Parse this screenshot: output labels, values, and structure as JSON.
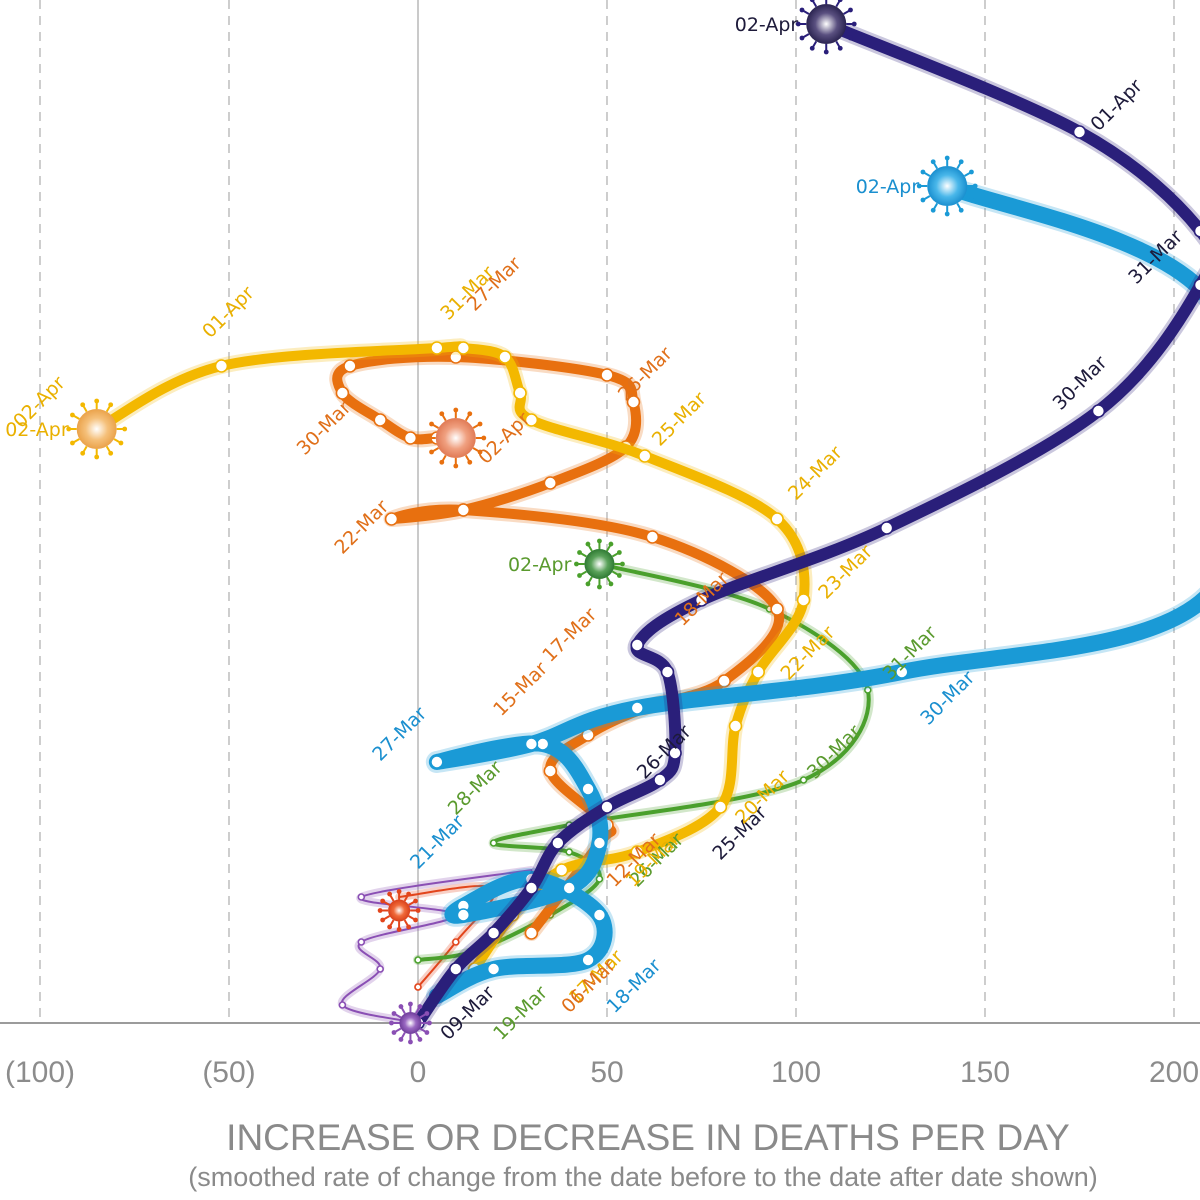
{
  "chart_data": {
    "type": "line",
    "title": "",
    "xlabel": "INCREASE OR DECREASE IN DEATHS PER DAY",
    "xlabel_sub": "(smoothed rate of change from the date before to the date after date shown)",
    "ylabel": "",
    "xlim": [
      -105,
      210
    ],
    "ylim_note": "y-axis unlabeled; y given as fraction of plot height above baseline",
    "x_ticks": [
      {
        "value": -100,
        "label": "(100)"
      },
      {
        "value": -50,
        "label": "(50)"
      },
      {
        "value": 0,
        "label": "0"
      },
      {
        "value": 50,
        "label": "50"
      },
      {
        "value": 100,
        "label": "100"
      },
      {
        "value": 150,
        "label": "150"
      },
      {
        "value": 200,
        "label": "200"
      }
    ],
    "grid": "vertical dashed",
    "series": [
      {
        "name": "dark-navy",
        "color": "#2a1f7a",
        "width": 12,
        "end_label": "02-Apr",
        "points": [
          [
            0,
            0.0
          ],
          [
            10,
            0.06
          ],
          [
            20,
            0.1
          ],
          [
            30,
            0.15
          ],
          [
            37,
            0.2
          ],
          [
            50,
            0.24
          ],
          [
            64,
            0.27
          ],
          [
            68,
            0.3
          ],
          [
            66,
            0.39
          ],
          [
            58,
            0.42
          ],
          [
            75,
            0.47
          ],
          [
            124,
            0.55
          ],
          [
            180,
            0.68
          ],
          [
            207,
            0.82
          ],
          [
            207,
            0.88
          ],
          [
            175,
            0.99
          ],
          [
            108,
            1.11
          ]
        ],
        "labels": [
          {
            "text": "09-Mar",
            "x": 8,
            "y": -0.02
          },
          {
            "text": "25-Mar",
            "x": 80,
            "y": 0.18
          },
          {
            "text": "26-Mar",
            "x": 60,
            "y": 0.27
          },
          {
            "text": "30-Mar",
            "x": 170,
            "y": 0.68
          },
          {
            "text": "31-Mar",
            "x": 190,
            "y": 0.82
          },
          {
            "text": "01-Apr",
            "x": 180,
            "y": 0.99
          }
        ]
      },
      {
        "name": "light-blue",
        "color": "#1a9ad6",
        "width": 16,
        "end_label": "02-Apr",
        "points": [
          [
            5,
            0.03
          ],
          [
            20,
            0.06
          ],
          [
            45,
            0.07
          ],
          [
            48,
            0.12
          ],
          [
            30,
            0.16
          ],
          [
            12,
            0.13
          ],
          [
            12,
            0.12
          ],
          [
            40,
            0.15
          ],
          [
            48,
            0.2
          ],
          [
            45,
            0.26
          ],
          [
            33,
            0.31
          ],
          [
            5,
            0.29
          ],
          [
            30,
            0.31
          ],
          [
            58,
            0.35
          ],
          [
            128,
            0.39
          ],
          [
            210,
            0.48
          ],
          [
            210,
            0.8
          ],
          [
            140,
            0.93
          ]
        ],
        "labels": [
          {
            "text": "18-Mar",
            "x": 52,
            "y": 0.01
          },
          {
            "text": "21-Mar",
            "x": 0,
            "y": 0.17
          },
          {
            "text": "27-Mar",
            "x": -10,
            "y": 0.29
          },
          {
            "text": "30-Mar",
            "x": 135,
            "y": 0.33
          }
        ]
      },
      {
        "name": "green",
        "color": "#4aa02c",
        "width": 4,
        "end_label": "02-Apr",
        "points": [
          [
            0,
            0.07
          ],
          [
            15,
            0.08
          ],
          [
            35,
            0.12
          ],
          [
            48,
            0.16
          ],
          [
            40,
            0.19
          ],
          [
            20,
            0.2
          ],
          [
            40,
            0.22
          ],
          [
            102,
            0.27
          ],
          [
            119,
            0.37
          ],
          [
            93,
            0.46
          ],
          [
            48,
            0.51
          ]
        ],
        "labels": [
          {
            "text": "19-Mar",
            "x": 22,
            "y": -0.02
          },
          {
            "text": "26-Mar",
            "x": 58,
            "y": 0.15
          },
          {
            "text": "28-Mar",
            "x": 10,
            "y": 0.23
          },
          {
            "text": "30-Mar",
            "x": 105,
            "y": 0.27
          },
          {
            "text": "31-Mar",
            "x": 125,
            "y": 0.38
          }
        ]
      },
      {
        "name": "yellow",
        "color": "#f3b800",
        "width": 10,
        "end_label": "02-Apr",
        "points": [
          [
            15,
            0.06
          ],
          [
            25,
            0.12
          ],
          [
            38,
            0.17
          ],
          [
            58,
            0.19
          ],
          [
            80,
            0.24
          ],
          [
            84,
            0.33
          ],
          [
            90,
            0.39
          ],
          [
            102,
            0.47
          ],
          [
            95,
            0.56
          ],
          [
            60,
            0.63
          ],
          [
            30,
            0.67
          ],
          [
            27,
            0.7
          ],
          [
            23,
            0.74
          ],
          [
            12,
            0.75
          ],
          [
            5,
            0.75
          ],
          [
            -52,
            0.73
          ],
          [
            -85,
            0.66
          ]
        ],
        "labels": [
          {
            "text": "17-Mar",
            "x": 42,
            "y": 0.02
          },
          {
            "text": "19-Mar",
            "x": 57,
            "y": 0.15
          },
          {
            "text": "20-Mar",
            "x": 86,
            "y": 0.22
          },
          {
            "text": "22-Mar",
            "x": 98,
            "y": 0.38
          },
          {
            "text": "23-Mar",
            "x": 108,
            "y": 0.47
          },
          {
            "text": "24-Mar",
            "x": 100,
            "y": 0.58
          },
          {
            "text": "25-Mar",
            "x": 64,
            "y": 0.64
          },
          {
            "text": "31-Mar",
            "x": 8,
            "y": 0.78
          },
          {
            "text": "01-Apr",
            "x": -55,
            "y": 0.76
          },
          {
            "text": "02-Apr",
            "x": -105,
            "y": 0.66
          }
        ]
      },
      {
        "name": "orange",
        "color": "#e8700f",
        "width": 10,
        "points": [
          [
            30,
            0.1
          ],
          [
            48,
            0.2
          ],
          [
            50,
            0.22
          ],
          [
            35,
            0.28
          ],
          [
            45,
            0.32
          ],
          [
            60,
            0.35
          ],
          [
            81,
            0.38
          ],
          [
            95,
            0.46
          ],
          [
            62,
            0.54
          ],
          [
            12,
            0.57
          ],
          [
            -7,
            0.56
          ],
          [
            12,
            0.57
          ],
          [
            35,
            0.6
          ],
          [
            55,
            0.64
          ],
          [
            57,
            0.69
          ],
          [
            50,
            0.72
          ],
          [
            10,
            0.74
          ],
          [
            -18,
            0.73
          ],
          [
            -20,
            0.7
          ],
          [
            -10,
            0.67
          ],
          [
            -2,
            0.65
          ],
          [
            5,
            0.65
          ],
          [
            10,
            0.65
          ]
        ],
        "labels": [
          {
            "text": "06-Mar",
            "x": 40,
            "y": 0.01
          },
          {
            "text": "12-Mar",
            "x": 52,
            "y": 0.15
          },
          {
            "text": "15-Mar",
            "x": 22,
            "y": 0.34
          },
          {
            "text": "17-Mar",
            "x": 35,
            "y": 0.4
          },
          {
            "text": "18-Mar",
            "x": 70,
            "y": 0.44
          },
          {
            "text": "22-Mar",
            "x": -20,
            "y": 0.52
          },
          {
            "text": "26-Mar",
            "x": 55,
            "y": 0.69
          },
          {
            "text": "27-Mar",
            "x": 15,
            "y": 0.79
          },
          {
            "text": "30-Mar",
            "x": -30,
            "y": 0.63
          },
          {
            "text": "02-Apr",
            "x": 18,
            "y": 0.62
          }
        ]
      },
      {
        "name": "red",
        "color": "#e2451c",
        "width": 2,
        "end_label": "",
        "points": [
          [
            0,
            0.04
          ],
          [
            10,
            0.09
          ],
          [
            20,
            0.15
          ],
          [
            -5,
            0.14
          ]
        ],
        "labels": []
      },
      {
        "name": "purple",
        "color": "#8a4fb4",
        "width": 2,
        "end_label": "",
        "points": [
          [
            0,
            0.0
          ],
          [
            -20,
            0.02
          ],
          [
            -10,
            0.06
          ],
          [
            -15,
            0.09
          ],
          [
            10,
            0.12
          ],
          [
            -15,
            0.14
          ],
          [
            30,
            0.17
          ]
        ],
        "labels": []
      }
    ]
  }
}
